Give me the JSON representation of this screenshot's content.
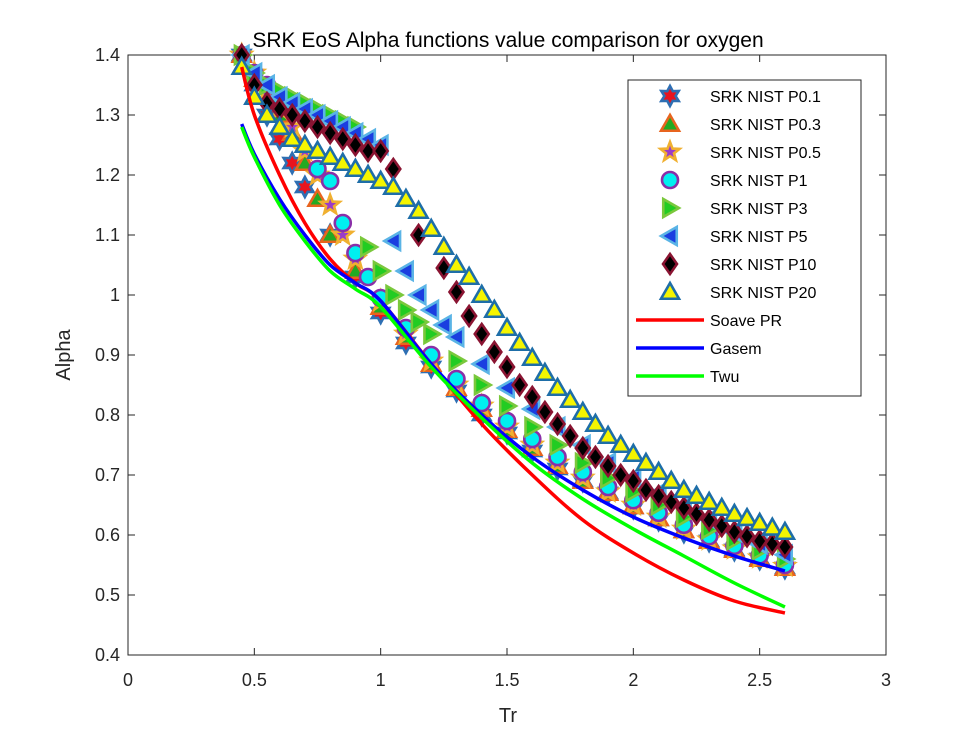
{
  "chart_data": {
    "type": "scatter",
    "title": "SRK EoS Alpha functions value comparison for oxygen",
    "xlabel": "Tr",
    "ylabel": "Alpha",
    "xlim": [
      0,
      3
    ],
    "ylim": [
      0.4,
      1.4
    ],
    "xticks": [
      "0",
      "0.5",
      "1",
      "1.5",
      "2",
      "2.5",
      "3"
    ],
    "yticks": [
      "0.4",
      "0.5",
      "0.6",
      "0.7",
      "0.8",
      "0.9",
      "1",
      "1.1",
      "1.2",
      "1.3",
      "1.4"
    ],
    "grid": false,
    "legend_position": "top-right",
    "series": [
      {
        "name": "SRK NIST P0.1",
        "marker": "hexagram",
        "stroke": "#2e6fb3",
        "fill": "#e8141e",
        "x": [
          0.45,
          0.5,
          0.55,
          0.6,
          0.65,
          0.7,
          0.8,
          0.9,
          1.0,
          1.1,
          1.2,
          1.3,
          1.4,
          1.5,
          1.6,
          1.7,
          1.8,
          1.9,
          2.0,
          2.1,
          2.2,
          2.3,
          2.4,
          2.5,
          2.6
        ],
        "y": [
          1.4,
          1.35,
          1.3,
          1.26,
          1.22,
          1.18,
          1.1,
          1.03,
          0.97,
          0.92,
          0.88,
          0.84,
          0.8,
          0.77,
          0.74,
          0.71,
          0.69,
          0.67,
          0.645,
          0.625,
          0.605,
          0.59,
          0.575,
          0.56,
          0.545
        ]
      },
      {
        "name": "SRK NIST P0.3",
        "marker": "triangle-up",
        "stroke": "#e8641e",
        "fill": "#22aa22",
        "x": [
          0.45,
          0.5,
          0.55,
          0.6,
          0.65,
          0.7,
          0.75,
          0.8,
          0.9,
          1.0,
          1.1,
          1.2,
          1.3,
          1.4,
          1.5,
          1.6,
          1.7,
          1.8,
          1.9,
          2.0,
          2.1,
          2.2,
          2.3,
          2.4,
          2.5,
          2.6
        ],
        "y": [
          1.4,
          1.36,
          1.33,
          1.3,
          1.27,
          1.22,
          1.16,
          1.1,
          1.04,
          0.98,
          0.93,
          0.885,
          0.845,
          0.81,
          0.775,
          0.745,
          0.715,
          0.69,
          0.67,
          0.648,
          0.628,
          0.608,
          0.59,
          0.575,
          0.56,
          0.545
        ]
      },
      {
        "name": "SRK NIST P0.5",
        "marker": "pentagram",
        "stroke": "#f0b030",
        "fill": "#9b3cc8",
        "x": [
          0.45,
          0.5,
          0.55,
          0.6,
          0.65,
          0.7,
          0.75,
          0.8,
          0.85,
          0.9,
          1.0,
          1.1,
          1.2,
          1.3,
          1.4,
          1.5,
          1.6,
          1.7,
          1.8,
          1.9,
          2.0,
          2.1,
          2.2,
          2.3,
          2.4,
          2.5,
          2.6
        ],
        "y": [
          1.4,
          1.37,
          1.34,
          1.31,
          1.28,
          1.24,
          1.2,
          1.15,
          1.1,
          1.06,
          0.99,
          0.935,
          0.89,
          0.85,
          0.815,
          0.78,
          0.75,
          0.72,
          0.695,
          0.672,
          0.65,
          0.63,
          0.61,
          0.592,
          0.577,
          0.562,
          0.548
        ]
      },
      {
        "name": "SRK NIST P1",
        "marker": "circle",
        "stroke": "#8a2fa8",
        "fill": "#00f0f0",
        "x": [
          0.45,
          0.5,
          0.55,
          0.6,
          0.65,
          0.7,
          0.75,
          0.8,
          0.85,
          0.9,
          0.95,
          1.0,
          1.1,
          1.2,
          1.3,
          1.4,
          1.5,
          1.6,
          1.7,
          1.8,
          1.9,
          2.0,
          2.1,
          2.2,
          2.3,
          2.4,
          2.5,
          2.6
        ],
        "y": [
          1.4,
          1.37,
          1.35,
          1.33,
          1.32,
          1.3,
          1.21,
          1.19,
          1.12,
          1.07,
          1.03,
          0.995,
          0.945,
          0.9,
          0.86,
          0.82,
          0.79,
          0.76,
          0.73,
          0.705,
          0.68,
          0.658,
          0.637,
          0.617,
          0.598,
          0.582,
          0.566,
          0.55
        ]
      },
      {
        "name": "SRK NIST P3",
        "marker": "triangle-right",
        "stroke": "#7ac83c",
        "fill": "#22cc22",
        "x": [
          0.45,
          0.5,
          0.55,
          0.6,
          0.65,
          0.7,
          0.75,
          0.8,
          0.85,
          0.9,
          0.95,
          1.0,
          1.05,
          1.1,
          1.15,
          1.2,
          1.3,
          1.4,
          1.5,
          1.6,
          1.7,
          1.8,
          1.9,
          2.0,
          2.1,
          2.2,
          2.3,
          2.4,
          2.5,
          2.6
        ],
        "y": [
          1.4,
          1.37,
          1.35,
          1.34,
          1.33,
          1.32,
          1.31,
          1.3,
          1.29,
          1.28,
          1.08,
          1.04,
          1.0,
          0.975,
          0.955,
          0.935,
          0.89,
          0.85,
          0.815,
          0.78,
          0.75,
          0.72,
          0.695,
          0.672,
          0.65,
          0.63,
          0.61,
          0.592,
          0.575,
          0.56
        ]
      },
      {
        "name": "SRK NIST P5",
        "marker": "triangle-left",
        "stroke": "#5ab4e6",
        "fill": "#1a3ee0",
        "x": [
          0.45,
          0.5,
          0.55,
          0.6,
          0.65,
          0.7,
          0.75,
          0.8,
          0.85,
          0.9,
          0.95,
          1.0,
          1.05,
          1.1,
          1.15,
          1.2,
          1.25,
          1.3,
          1.4,
          1.5,
          1.6,
          1.7,
          1.8,
          1.9,
          2.0,
          2.1,
          2.2,
          2.3,
          2.4,
          2.5,
          2.6
        ],
        "y": [
          1.4,
          1.37,
          1.35,
          1.33,
          1.32,
          1.31,
          1.3,
          1.29,
          1.28,
          1.27,
          1.26,
          1.25,
          1.09,
          1.04,
          1.0,
          0.975,
          0.95,
          0.93,
          0.885,
          0.845,
          0.81,
          0.78,
          0.75,
          0.72,
          0.695,
          0.67,
          0.648,
          0.626,
          0.605,
          0.585,
          0.567
        ]
      },
      {
        "name": "SRK NIST P10",
        "marker": "diamond",
        "stroke": "#8a1432",
        "fill": "#000000",
        "x": [
          0.45,
          0.5,
          0.55,
          0.6,
          0.65,
          0.7,
          0.75,
          0.8,
          0.85,
          0.9,
          0.95,
          1.0,
          1.05,
          1.15,
          1.25,
          1.3,
          1.35,
          1.4,
          1.45,
          1.5,
          1.55,
          1.6,
          1.65,
          1.7,
          1.75,
          1.8,
          1.85,
          1.9,
          1.95,
          2.0,
          2.05,
          2.1,
          2.15,
          2.2,
          2.25,
          2.3,
          2.35,
          2.4,
          2.45,
          2.5,
          2.55,
          2.6
        ],
        "y": [
          1.4,
          1.35,
          1.32,
          1.31,
          1.3,
          1.29,
          1.28,
          1.27,
          1.26,
          1.25,
          1.24,
          1.24,
          1.21,
          1.1,
          1.045,
          1.005,
          0.965,
          0.935,
          0.905,
          0.88,
          0.85,
          0.83,
          0.805,
          0.785,
          0.765,
          0.745,
          0.73,
          0.715,
          0.7,
          0.69,
          0.675,
          0.665,
          0.655,
          0.645,
          0.635,
          0.625,
          0.615,
          0.605,
          0.598,
          0.59,
          0.585,
          0.58
        ]
      },
      {
        "name": "SRK NIST P20",
        "marker": "triangle-up",
        "stroke": "#1e6ea8",
        "fill": "#f5f500",
        "x": [
          0.45,
          0.5,
          0.55,
          0.6,
          0.65,
          0.7,
          0.75,
          0.8,
          0.85,
          0.9,
          0.95,
          1.0,
          1.05,
          1.1,
          1.15,
          1.2,
          1.25,
          1.3,
          1.35,
          1.4,
          1.45,
          1.5,
          1.55,
          1.6,
          1.65,
          1.7,
          1.75,
          1.8,
          1.85,
          1.9,
          1.95,
          2.0,
          2.05,
          2.1,
          2.15,
          2.2,
          2.25,
          2.3,
          2.35,
          2.4,
          2.45,
          2.5,
          2.55,
          2.6
        ],
        "y": [
          1.38,
          1.33,
          1.3,
          1.28,
          1.26,
          1.25,
          1.24,
          1.23,
          1.22,
          1.21,
          1.2,
          1.19,
          1.18,
          1.16,
          1.14,
          1.11,
          1.08,
          1.05,
          1.03,
          1.0,
          0.975,
          0.945,
          0.92,
          0.895,
          0.87,
          0.845,
          0.825,
          0.805,
          0.785,
          0.765,
          0.75,
          0.735,
          0.72,
          0.705,
          0.69,
          0.675,
          0.665,
          0.655,
          0.645,
          0.635,
          0.628,
          0.62,
          0.612,
          0.605
        ]
      }
    ],
    "lines": [
      {
        "name": "Soave PR",
        "color": "#ff0000",
        "x": [
          0.45,
          0.5,
          0.6,
          0.7,
          0.8,
          0.9,
          1.0,
          1.2,
          1.4,
          1.6,
          1.8,
          2.0,
          2.2,
          2.4,
          2.6
        ],
        "y": [
          1.38,
          1.3,
          1.2,
          1.12,
          1.06,
          1.02,
          0.99,
          0.885,
          0.785,
          0.7,
          0.625,
          0.57,
          0.525,
          0.49,
          0.47
        ]
      },
      {
        "name": "Gasem",
        "color": "#0000ff",
        "x": [
          0.45,
          0.5,
          0.6,
          0.7,
          0.8,
          0.9,
          1.0,
          1.2,
          1.4,
          1.6,
          1.8,
          2.0,
          2.2,
          2.4,
          2.6
        ],
        "y": [
          1.285,
          1.235,
          1.16,
          1.1,
          1.05,
          1.02,
          0.99,
          0.885,
          0.8,
          0.73,
          0.675,
          0.63,
          0.595,
          0.565,
          0.54
        ]
      },
      {
        "name": "Twu",
        "color": "#00ff00",
        "x": [
          0.45,
          0.5,
          0.6,
          0.7,
          0.8,
          0.9,
          1.0,
          1.2,
          1.4,
          1.6,
          1.8,
          2.0,
          2.2,
          2.4,
          2.6
        ],
        "y": [
          1.28,
          1.23,
          1.15,
          1.09,
          1.04,
          1.01,
          0.98,
          0.88,
          0.795,
          0.72,
          0.66,
          0.61,
          0.565,
          0.52,
          0.48
        ]
      }
    ]
  }
}
